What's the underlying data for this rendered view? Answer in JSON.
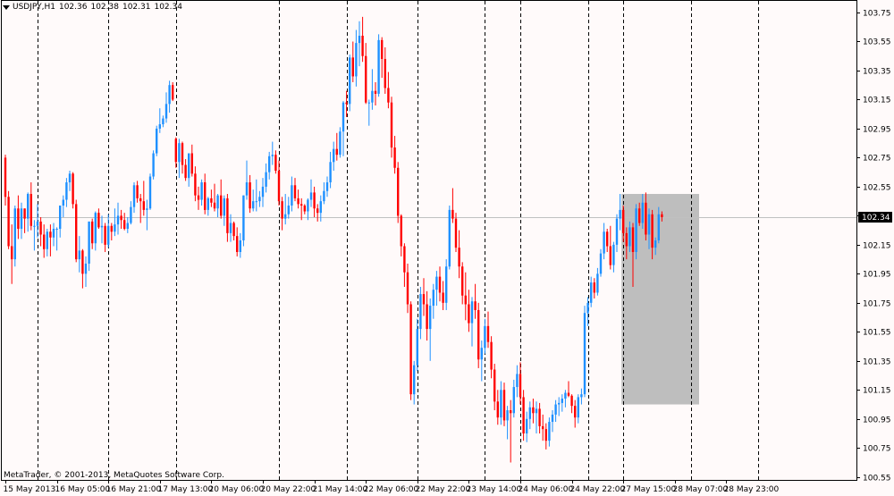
{
  "header": {
    "symbol": "USDJPY,H1",
    "open": "102.36",
    "high": "102.38",
    "low": "102.31",
    "close": "102.34",
    "menu_icon": "triangle-down-icon"
  },
  "copyright": "MetaTrader, © 2001-2013, MetaQuotes Software Corp.",
  "colors": {
    "background": "#fffafa",
    "bull": "#1e90ff",
    "bear": "#ff0000",
    "grid": "#000000",
    "bidline": "#c0c0c0",
    "highlight": "#bebebe",
    "price_label_bg": "#000000",
    "price_label_fg": "#ffffff"
  },
  "chart_data": {
    "type": "candlestick",
    "timeframe": "H1",
    "ylim": [
      100.53,
      103.83
    ],
    "y_ticks": [
      103.75,
      103.55,
      103.35,
      103.15,
      102.95,
      102.75,
      102.55,
      102.35,
      102.15,
      101.95,
      101.75,
      101.55,
      101.35,
      101.15,
      100.95,
      100.75,
      100.55
    ],
    "y_tick_labels": [
      "103.75",
      "103.55",
      "103.35",
      "103.15",
      "102.95",
      "102.75",
      "102.55",
      "102.35",
      "102.15",
      "101.95",
      "101.75",
      "101.55",
      "101.35",
      "101.15",
      "100.95",
      "100.75",
      "100.55"
    ],
    "x_labels": [
      "15 May 2013",
      "16 May 05:00",
      "16 May 21:00",
      "17 May 13:00",
      "20 May 06:00",
      "20 May 22:00",
      "21 May 14:00",
      "22 May 06:00",
      "22 May 22:00",
      "23 May 14:00",
      "24 May 06:00",
      "24 May 22:00",
      "27 May 15:00",
      "28 May 07:00",
      "28 May 23:00"
    ],
    "x_label_slots": [
      0,
      16,
      32,
      48,
      64,
      80,
      96,
      112,
      128,
      144,
      160,
      176,
      192,
      208,
      224
    ],
    "separator_slots": [
      10,
      32,
      53,
      85,
      106,
      128,
      149,
      160,
      181,
      192,
      213,
      234
    ],
    "grid": true,
    "current_price": 102.34,
    "current_price_label": "102.34",
    "highlight_box": {
      "slot_start": 192,
      "slot_end": 215,
      "high": 102.5,
      "low": 101.05
    },
    "candles": [
      [
        102.75,
        102.77,
        102.42,
        102.48
      ],
      [
        102.48,
        102.52,
        102.12,
        102.14
      ],
      [
        102.14,
        102.29,
        101.88,
        102.05
      ],
      [
        102.05,
        102.42,
        102.0,
        102.4
      ],
      [
        102.4,
        102.49,
        102.19,
        102.26
      ],
      [
        102.26,
        102.44,
        102.19,
        102.4
      ],
      [
        102.4,
        102.4,
        102.23,
        102.33
      ],
      [
        102.33,
        102.51,
        102.24,
        102.5
      ],
      [
        102.5,
        102.58,
        102.25,
        102.28
      ],
      [
        102.28,
        102.32,
        102.11,
        102.28
      ],
      [
        102.28,
        102.43,
        102.2,
        102.31
      ],
      [
        102.31,
        102.34,
        102.14,
        102.22
      ],
      [
        102.22,
        102.29,
        102.06,
        102.12
      ],
      [
        102.12,
        102.26,
        102.07,
        102.24
      ],
      [
        102.24,
        102.29,
        102.07,
        102.2
      ],
      [
        102.2,
        102.3,
        102.14,
        102.26
      ],
      [
        102.26,
        102.27,
        102.11,
        102.26
      ],
      [
        102.26,
        102.42,
        102.2,
        102.42
      ],
      [
        102.42,
        102.49,
        102.34,
        102.46
      ],
      [
        102.46,
        102.61,
        102.41,
        102.58
      ],
      [
        102.58,
        102.66,
        102.52,
        102.64
      ],
      [
        102.64,
        102.65,
        102.4,
        102.43
      ],
      [
        102.43,
        102.46,
        102.03,
        102.05
      ],
      [
        102.05,
        102.21,
        101.96,
        102.11
      ],
      [
        102.11,
        102.12,
        101.85,
        101.95
      ],
      [
        101.95,
        102.07,
        101.86,
        102.02
      ],
      [
        102.02,
        102.31,
        101.97,
        102.31
      ],
      [
        102.31,
        102.33,
        102.12,
        102.16
      ],
      [
        102.16,
        102.38,
        102.11,
        102.37
      ],
      [
        102.37,
        102.4,
        102.26,
        102.27
      ],
      [
        102.27,
        102.35,
        102.16,
        102.28
      ],
      [
        102.28,
        102.3,
        102.1,
        102.15
      ],
      [
        102.15,
        102.36,
        102.13,
        102.28
      ],
      [
        102.28,
        102.3,
        102.18,
        102.24
      ],
      [
        102.24,
        102.4,
        102.21,
        102.29
      ],
      [
        102.29,
        102.44,
        102.22,
        102.35
      ],
      [
        102.35,
        102.39,
        102.26,
        102.32
      ],
      [
        102.32,
        102.37,
        102.25,
        102.26
      ],
      [
        102.26,
        102.34,
        102.23,
        102.3
      ],
      [
        102.3,
        102.45,
        102.29,
        102.41
      ],
      [
        102.41,
        102.58,
        102.37,
        102.56
      ],
      [
        102.56,
        102.59,
        102.44,
        102.47
      ],
      [
        102.47,
        102.5,
        102.3,
        102.45
      ],
      [
        102.45,
        102.59,
        102.35,
        102.39
      ],
      [
        102.39,
        102.46,
        102.25,
        102.4
      ],
      [
        102.4,
        102.64,
        102.39,
        102.62
      ],
      [
        102.62,
        102.8,
        102.6,
        102.78
      ],
      [
        102.78,
        102.97,
        102.76,
        102.95
      ],
      [
        102.95,
        103.09,
        102.92,
        102.98
      ],
      [
        102.98,
        103.04,
        102.96,
        103.02
      ],
      [
        103.02,
        103.2,
        102.99,
        103.12
      ],
      [
        103.12,
        103.28,
        103.06,
        103.25
      ],
      [
        103.25,
        103.27,
        103.14,
        103.15
      ],
      [
        102.88,
        102.89,
        102.68,
        102.72
      ],
      [
        102.72,
        102.88,
        102.61,
        102.85
      ],
      [
        102.85,
        102.86,
        102.64,
        102.7
      ],
      [
        102.7,
        102.74,
        102.59,
        102.61
      ],
      [
        102.61,
        102.78,
        102.55,
        102.78
      ],
      [
        102.78,
        102.84,
        102.62,
        102.64
      ],
      [
        102.64,
        102.69,
        102.45,
        102.49
      ],
      [
        102.49,
        102.55,
        102.39,
        102.46
      ],
      [
        102.46,
        102.6,
        102.42,
        102.58
      ],
      [
        102.58,
        102.64,
        102.36,
        102.39
      ],
      [
        102.39,
        102.48,
        102.35,
        102.47
      ],
      [
        102.47,
        102.53,
        102.41,
        102.44
      ],
      [
        102.44,
        102.57,
        102.38,
        102.4
      ],
      [
        102.4,
        102.5,
        102.34,
        102.49
      ],
      [
        102.49,
        102.6,
        102.33,
        102.35
      ],
      [
        102.35,
        102.49,
        102.28,
        102.47
      ],
      [
        102.47,
        102.5,
        102.17,
        102.23
      ],
      [
        102.23,
        102.36,
        102.17,
        102.3
      ],
      [
        102.3,
        102.31,
        102.18,
        102.21
      ],
      [
        102.21,
        102.27,
        102.07,
        102.1
      ],
      [
        102.1,
        102.23,
        102.06,
        102.18
      ],
      [
        102.18,
        102.49,
        102.14,
        102.49
      ],
      [
        102.49,
        102.73,
        102.46,
        102.58
      ],
      [
        102.58,
        102.63,
        102.37,
        102.4
      ],
      [
        102.4,
        102.53,
        102.38,
        102.45
      ],
      [
        102.45,
        102.6,
        102.38,
        102.45
      ],
      [
        102.45,
        102.52,
        102.41,
        102.48
      ],
      [
        102.48,
        102.61,
        102.41,
        102.55
      ],
      [
        102.55,
        102.71,
        102.51,
        102.65
      ],
      [
        102.65,
        102.79,
        102.6,
        102.76
      ],
      [
        102.76,
        102.86,
        102.7,
        102.77
      ],
      [
        102.77,
        102.8,
        102.64,
        102.66
      ],
      [
        102.66,
        102.73,
        102.42,
        102.45
      ],
      [
        102.45,
        102.48,
        102.25,
        102.33
      ],
      [
        102.33,
        102.5,
        102.29,
        102.36
      ],
      [
        102.36,
        102.48,
        102.33,
        102.42
      ],
      [
        102.42,
        102.62,
        102.38,
        102.56
      ],
      [
        102.56,
        102.61,
        102.45,
        102.47
      ],
      [
        102.47,
        102.53,
        102.4,
        102.43
      ],
      [
        102.43,
        102.47,
        102.32,
        102.42
      ],
      [
        102.42,
        102.43,
        102.36,
        102.38
      ],
      [
        102.38,
        102.47,
        102.32,
        102.46
      ],
      [
        102.46,
        102.6,
        102.41,
        102.51
      ],
      [
        102.51,
        102.55,
        102.34,
        102.4
      ],
      [
        102.4,
        102.43,
        102.31,
        102.37
      ],
      [
        102.37,
        102.49,
        102.31,
        102.45
      ],
      [
        102.45,
        102.58,
        102.43,
        102.52
      ],
      [
        102.52,
        102.62,
        102.48,
        102.58
      ],
      [
        102.58,
        102.79,
        102.54,
        102.72
      ],
      [
        102.72,
        102.86,
        102.66,
        102.81
      ],
      [
        102.81,
        102.92,
        102.73,
        102.77
      ],
      [
        102.77,
        102.96,
        102.75,
        102.93
      ],
      [
        102.93,
        103.14,
        102.76,
        103.13
      ],
      [
        103.13,
        103.21,
        103.03,
        103.12
      ],
      [
        103.12,
        103.46,
        103.07,
        103.44
      ],
      [
        103.44,
        103.55,
        103.27,
        103.31
      ],
      [
        103.31,
        103.63,
        103.24,
        103.54
      ],
      [
        103.54,
        103.69,
        103.38,
        103.59
      ],
      [
        103.59,
        103.72,
        103.41,
        103.45
      ],
      [
        103.45,
        103.54,
        103.12,
        103.13
      ],
      [
        103.13,
        103.15,
        102.97,
        103.13
      ],
      [
        103.13,
        103.36,
        103.08,
        103.21
      ],
      [
        103.21,
        103.27,
        103.11,
        103.19
      ],
      [
        103.19,
        103.6,
        103.17,
        103.56
      ],
      [
        103.56,
        103.58,
        103.3,
        103.43
      ],
      [
        103.43,
        103.51,
        103.19,
        103.23
      ],
      [
        103.23,
        103.34,
        103.09,
        103.13
      ],
      [
        103.13,
        103.17,
        102.75,
        102.82
      ],
      [
        102.82,
        102.9,
        102.64,
        102.68
      ],
      [
        102.68,
        102.72,
        102.3,
        102.35
      ],
      [
        102.35,
        102.36,
        102.07,
        102.14
      ],
      [
        102.14,
        102.16,
        101.86,
        101.96
      ],
      [
        101.96,
        102.02,
        101.68,
        101.74
      ],
      [
        101.74,
        101.76,
        101.08,
        101.12
      ],
      [
        101.12,
        101.35,
        101.05,
        101.32
      ],
      [
        101.32,
        101.64,
        101.28,
        101.57
      ],
      [
        101.57,
        101.86,
        101.5,
        101.81
      ],
      [
        101.81,
        101.92,
        101.66,
        101.74
      ],
      [
        101.74,
        101.83,
        101.49,
        101.57
      ],
      [
        101.57,
        101.78,
        101.35,
        101.73
      ],
      [
        101.73,
        101.88,
        101.64,
        101.84
      ],
      [
        101.84,
        101.97,
        101.73,
        101.93
      ],
      [
        101.93,
        102.0,
        101.76,
        101.82
      ],
      [
        101.82,
        101.9,
        101.7,
        101.75
      ],
      [
        101.75,
        102.05,
        101.7,
        102.0
      ],
      [
        102.0,
        102.42,
        101.98,
        102.39
      ],
      [
        102.39,
        102.54,
        102.3,
        102.33
      ],
      [
        102.33,
        102.37,
        102.1,
        102.13
      ],
      [
        102.13,
        102.25,
        101.92,
        102.0
      ],
      [
        102.0,
        102.03,
        101.74,
        101.8
      ],
      [
        101.8,
        101.96,
        101.63,
        101.74
      ],
      [
        101.74,
        101.84,
        101.55,
        101.61
      ],
      [
        101.61,
        101.79,
        101.45,
        101.76
      ],
      [
        101.76,
        101.88,
        101.64,
        101.7
      ],
      [
        101.7,
        101.75,
        101.3,
        101.36
      ],
      [
        101.36,
        101.49,
        101.21,
        101.44
      ],
      [
        101.44,
        101.64,
        101.4,
        101.59
      ],
      [
        101.59,
        101.69,
        101.44,
        101.48
      ],
      [
        101.48,
        101.52,
        101.23,
        101.29
      ],
      [
        101.29,
        101.33,
        101.01,
        101.07
      ],
      [
        101.07,
        101.15,
        100.91,
        100.96
      ],
      [
        100.96,
        101.21,
        100.91,
        101.15
      ],
      [
        101.15,
        101.2,
        100.9,
        100.94
      ],
      [
        100.94,
        101.04,
        100.81,
        101.01
      ],
      [
        101.01,
        101.08,
        100.65,
        100.99
      ],
      [
        100.99,
        101.22,
        100.96,
        101.17
      ],
      [
        101.17,
        101.32,
        101.1,
        101.26
      ],
      [
        101.26,
        101.34,
        101.05,
        101.1
      ],
      [
        101.1,
        101.15,
        100.8,
        100.85
      ],
      [
        100.85,
        101.0,
        100.79,
        100.95
      ],
      [
        100.95,
        101.07,
        100.88,
        101.03
      ],
      [
        101.03,
        101.09,
        100.92,
        100.99
      ],
      [
        100.99,
        101.07,
        100.85,
        101.02
      ],
      [
        101.02,
        101.06,
        100.85,
        100.9
      ],
      [
        100.9,
        100.98,
        100.8,
        100.88
      ],
      [
        100.88,
        100.92,
        100.74,
        100.8
      ],
      [
        100.8,
        100.96,
        100.76,
        100.93
      ],
      [
        100.93,
        101.01,
        100.86,
        100.98
      ],
      [
        100.98,
        101.08,
        100.93,
        101.05
      ],
      [
        101.05,
        101.1,
        100.97,
        101.06
      ],
      [
        101.06,
        101.12,
        101.0,
        101.09
      ],
      [
        101.09,
        101.15,
        101.03,
        101.13
      ],
      [
        101.13,
        101.21,
        101.1,
        101.11
      ],
      [
        101.11,
        101.12,
        100.99,
        101.04
      ],
      [
        101.04,
        101.08,
        100.89,
        100.96
      ],
      [
        100.96,
        101.12,
        100.92,
        101.1
      ],
      [
        101.1,
        101.16,
        101.05,
        101.12
      ],
      [
        101.12,
        101.73,
        101.1,
        101.68
      ],
      [
        101.68,
        101.79,
        101.59,
        101.75
      ],
      [
        101.75,
        101.93,
        101.72,
        101.89
      ],
      [
        101.89,
        101.92,
        101.78,
        101.82
      ],
      [
        101.82,
        101.99,
        101.8,
        101.95
      ],
      [
        101.95,
        102.12,
        101.93,
        102.09
      ],
      [
        102.09,
        102.3,
        102.05,
        102.24
      ],
      [
        102.24,
        102.26,
        102.1,
        102.14
      ],
      [
        102.14,
        102.28,
        101.98,
        102.01
      ],
      [
        102.01,
        102.17,
        101.96,
        102.15
      ],
      [
        102.15,
        102.36,
        102.1,
        102.33
      ],
      [
        102.33,
        102.5,
        102.25,
        102.39
      ],
      [
        102.39,
        102.42,
        102.17,
        102.23
      ],
      [
        102.23,
        102.27,
        102.05,
        102.14
      ],
      [
        102.14,
        102.31,
        102.1,
        102.27
      ],
      [
        102.27,
        102.3,
        101.86,
        102.1
      ],
      [
        102.1,
        102.43,
        102.05,
        102.4
      ],
      [
        102.4,
        102.44,
        102.28,
        102.3
      ],
      [
        102.3,
        102.5,
        102.26,
        102.44
      ],
      [
        102.44,
        102.51,
        102.18,
        102.22
      ],
      [
        102.22,
        102.4,
        102.12,
        102.36
      ],
      [
        102.36,
        102.39,
        102.05,
        102.13
      ],
      [
        102.13,
        102.2,
        102.08,
        102.18
      ],
      [
        102.18,
        102.41,
        102.16,
        102.36
      ],
      [
        102.36,
        102.38,
        102.31,
        102.34
      ]
    ]
  }
}
